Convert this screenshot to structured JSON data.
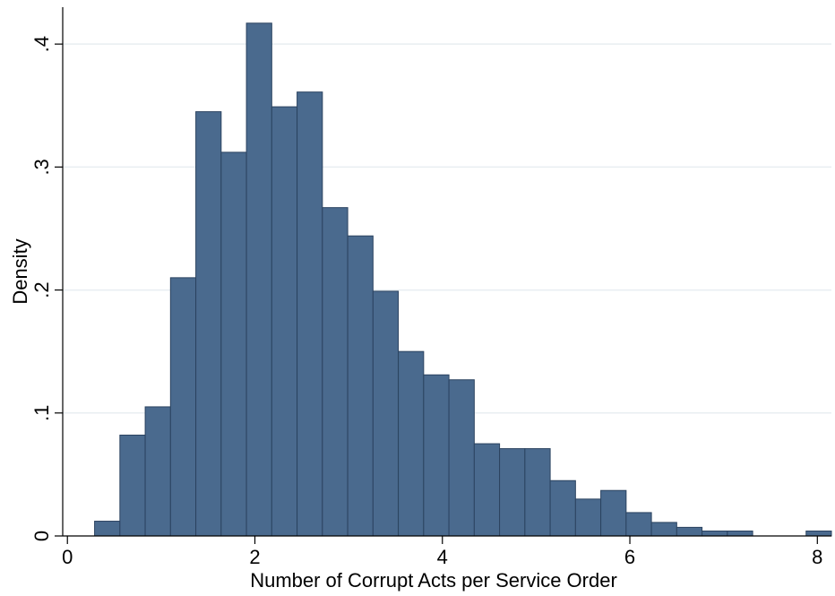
{
  "chart_data": {
    "type": "bar",
    "histogram": true,
    "title": "",
    "xlabel": "Number of Corrupt Acts per Service Order",
    "ylabel": "Density",
    "xlim": [
      -0.05,
      8.15
    ],
    "ylim": [
      0,
      0.43
    ],
    "xticks": [
      0,
      2,
      4,
      6,
      8
    ],
    "xtick_labels": [
      "0",
      "2",
      "4",
      "6",
      "8"
    ],
    "yticks": [
      0,
      0.1,
      0.2,
      0.3,
      0.4
    ],
    "ytick_labels": [
      "0",
      ".1",
      ".2",
      ".3",
      ".4"
    ],
    "grid": true,
    "bin_width": 0.27,
    "bin_starts": [
      0.29,
      0.56,
      0.83,
      1.1,
      1.37,
      1.64,
      1.91,
      2.18,
      2.45,
      2.72,
      2.99,
      3.26,
      3.53,
      3.8,
      4.07,
      4.34,
      4.61,
      4.88,
      5.15,
      5.42,
      5.69,
      5.96,
      6.23,
      6.5,
      6.77,
      7.04,
      7.88
    ],
    "values": [
      0.012,
      0.082,
      0.105,
      0.21,
      0.345,
      0.312,
      0.417,
      0.349,
      0.361,
      0.267,
      0.244,
      0.199,
      0.15,
      0.131,
      0.127,
      0.075,
      0.071,
      0.071,
      0.045,
      0.03,
      0.037,
      0.019,
      0.011,
      0.007,
      0.004,
      0.004,
      0.004
    ],
    "colors": {
      "bar_fill": "#4a6a8e",
      "bar_edge": "#2b4360",
      "grid": "#e8eef1",
      "axis": "#000000"
    }
  }
}
